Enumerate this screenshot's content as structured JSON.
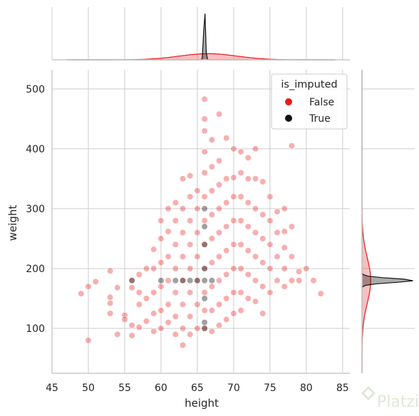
{
  "chart_data": {
    "type": "scatter",
    "subtype": "jointplot",
    "xlabel": "height",
    "ylabel": "weight",
    "xlim": [
      45,
      86
    ],
    "ylim": [
      25,
      532
    ],
    "xticks": [
      45,
      50,
      55,
      60,
      65,
      70,
      75,
      80,
      85
    ],
    "yticks": [
      100,
      200,
      300,
      400,
      500
    ],
    "grid": true,
    "legend": {
      "title": "is_imputed",
      "placement": "top-right"
    },
    "series": [
      {
        "name": "False",
        "color": "#e8191b",
        "alpha": 0.35,
        "points": [
          [
            49,
            158
          ],
          [
            50,
            170
          ],
          [
            50,
            80
          ],
          [
            51,
            178
          ],
          [
            53,
            196
          ],
          [
            53,
            152
          ],
          [
            53,
            142
          ],
          [
            53,
            125
          ],
          [
            54,
            90
          ],
          [
            54,
            168
          ],
          [
            55,
            122
          ],
          [
            55,
            115
          ],
          [
            56,
            180
          ],
          [
            56,
            168
          ],
          [
            56,
            105
          ],
          [
            56,
            88
          ],
          [
            57,
            190
          ],
          [
            57,
            160
          ],
          [
            57,
            140
          ],
          [
            57,
            102
          ],
          [
            58,
            200
          ],
          [
            58,
            150
          ],
          [
            58,
            112
          ],
          [
            59,
            232
          ],
          [
            59,
            200
          ],
          [
            59,
            160
          ],
          [
            59,
            125
          ],
          [
            59,
            95
          ],
          [
            60,
            280
          ],
          [
            60,
            250
          ],
          [
            60,
            210
          ],
          [
            60,
            170
          ],
          [
            60,
            130
          ],
          [
            60,
            100
          ],
          [
            61,
            300
          ],
          [
            61,
            262
          ],
          [
            61,
            220
          ],
          [
            61,
            180
          ],
          [
            61,
            140
          ],
          [
            61,
            110
          ],
          [
            62,
            310
          ],
          [
            62,
            280
          ],
          [
            62,
            240
          ],
          [
            62,
            200
          ],
          [
            62,
            160
          ],
          [
            62,
            120
          ],
          [
            62,
            90
          ],
          [
            63,
            350
          ],
          [
            63,
            300
          ],
          [
            63,
            260
          ],
          [
            63,
            220
          ],
          [
            63,
            180
          ],
          [
            63,
            140
          ],
          [
            63,
            100
          ],
          [
            63,
            72
          ],
          [
            64,
            355
          ],
          [
            64,
            320
          ],
          [
            64,
            280
          ],
          [
            64,
            240
          ],
          [
            64,
            200
          ],
          [
            64,
            160
          ],
          [
            64,
            120
          ],
          [
            64,
            90
          ],
          [
            65,
            330
          ],
          [
            65,
            300
          ],
          [
            65,
            260
          ],
          [
            65,
            220
          ],
          [
            65,
            180
          ],
          [
            65,
            140
          ],
          [
            65,
            100
          ],
          [
            66,
            483
          ],
          [
            66,
            450
          ],
          [
            66,
            430
          ],
          [
            66,
            395
          ],
          [
            66,
            360
          ],
          [
            66,
            320
          ],
          [
            66,
            280
          ],
          [
            66,
            240
          ],
          [
            66,
            200
          ],
          [
            66,
            160
          ],
          [
            66,
            130
          ],
          [
            66,
            100
          ],
          [
            67,
            415
          ],
          [
            67,
            370
          ],
          [
            67,
            330
          ],
          [
            67,
            290
          ],
          [
            67,
            250
          ],
          [
            67,
            210
          ],
          [
            67,
            170
          ],
          [
            67,
            130
          ],
          [
            67,
            95
          ],
          [
            68,
            458
          ],
          [
            68,
            380
          ],
          [
            68,
            340
          ],
          [
            68,
            300
          ],
          [
            68,
            260
          ],
          [
            68,
            220
          ],
          [
            68,
            180
          ],
          [
            68,
            140
          ],
          [
            68,
            105
          ],
          [
            69,
            418
          ],
          [
            69,
            350
          ],
          [
            69,
            310
          ],
          [
            69,
            270
          ],
          [
            69,
            230
          ],
          [
            69,
            190
          ],
          [
            69,
            150
          ],
          [
            69,
            115
          ],
          [
            70,
            400
          ],
          [
            70,
            352
          ],
          [
            70,
            320
          ],
          [
            70,
            280
          ],
          [
            70,
            240
          ],
          [
            70,
            200
          ],
          [
            70,
            160
          ],
          [
            70,
            125
          ],
          [
            71,
            395
          ],
          [
            71,
            360
          ],
          [
            71,
            320
          ],
          [
            71,
            280
          ],
          [
            71,
            240
          ],
          [
            71,
            200
          ],
          [
            71,
            160
          ],
          [
            71,
            130
          ],
          [
            72,
            385
          ],
          [
            72,
            350
          ],
          [
            72,
            310
          ],
          [
            72,
            270
          ],
          [
            72,
            230
          ],
          [
            72,
            190
          ],
          [
            72,
            150
          ],
          [
            73,
            400
          ],
          [
            73,
            350
          ],
          [
            73,
            300
          ],
          [
            73,
            260
          ],
          [
            73,
            220
          ],
          [
            73,
            180
          ],
          [
            73,
            145
          ],
          [
            74,
            345
          ],
          [
            74,
            290
          ],
          [
            74,
            250
          ],
          [
            74,
            210
          ],
          [
            74,
            170
          ],
          [
            74,
            125
          ],
          [
            75,
            320
          ],
          [
            75,
            280
          ],
          [
            75,
            240
          ],
          [
            75,
            200
          ],
          [
            75,
            160
          ],
          [
            76,
            295
          ],
          [
            76,
            260
          ],
          [
            76,
            220
          ],
          [
            76,
            180
          ],
          [
            77,
            300
          ],
          [
            77,
            262
          ],
          [
            77,
            235
          ],
          [
            77,
            200
          ],
          [
            77,
            170
          ],
          [
            78,
            405
          ],
          [
            78,
            270
          ],
          [
            78,
            220
          ],
          [
            78,
            180
          ],
          [
            79,
            195
          ],
          [
            79,
            180
          ],
          [
            80,
            200
          ],
          [
            81,
            180
          ],
          [
            82,
            158
          ]
        ]
      },
      {
        "name": "True",
        "color": "#111111",
        "alpha": 0.4,
        "points": [
          [
            56,
            180
          ],
          [
            60,
            180
          ],
          [
            62,
            180
          ],
          [
            63,
            180
          ],
          [
            64,
            180
          ],
          [
            65,
            180
          ],
          [
            66,
            180
          ],
          [
            66,
            300
          ],
          [
            66,
            110
          ],
          [
            66,
            100
          ],
          [
            66,
            150
          ],
          [
            66,
            240
          ],
          [
            66,
            200
          ],
          [
            66,
            270
          ],
          [
            67,
            180
          ]
        ]
      }
    ],
    "marginal_x": {
      "range": [
        47,
        84
      ],
      "series": [
        {
          "name": "False",
          "color": "#e8191b",
          "peak": 66.5,
          "spread": 4.0,
          "height": 0.12
        },
        {
          "name": "True",
          "color": "#111111",
          "peak": 66.0,
          "spread": 0.12,
          "height": 1.0
        }
      ]
    },
    "marginal_y": {
      "range": [
        25,
        532
      ],
      "series": [
        {
          "name": "False",
          "color": "#e8191b",
          "peak": 180,
          "spread": 38,
          "height": 0.17
        },
        {
          "name": "True",
          "color": "#111111",
          "peak": 180,
          "spread": 3.5,
          "height": 1.0
        }
      ]
    }
  },
  "watermark": {
    "text": "Platzi"
  }
}
